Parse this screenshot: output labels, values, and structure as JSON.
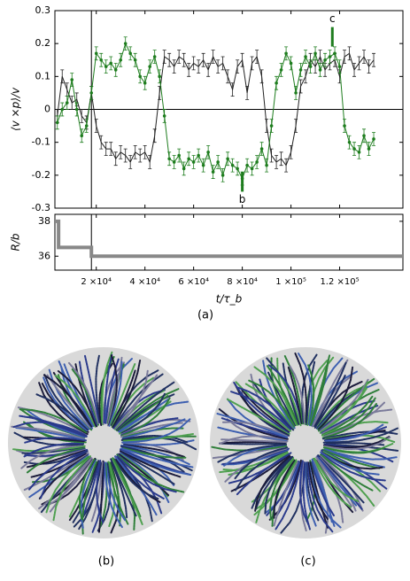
{
  "chart_data": [
    {
      "type": "line",
      "ylabel": "⟨v ×p⟩/v",
      "x": [
        4000,
        6000,
        8000,
        10000,
        12000,
        14000,
        16000,
        18000,
        20000,
        22000,
        24000,
        26000,
        28000,
        30000,
        32000,
        34000,
        36000,
        38000,
        40000,
        42000,
        44000,
        46000,
        48000,
        50000,
        52000,
        54000,
        56000,
        58000,
        60000,
        62000,
        64000,
        66000,
        68000,
        70000,
        72000,
        74000,
        76000,
        78000,
        80000,
        82000,
        84000,
        86000,
        88000,
        90000,
        92000,
        94000,
        96000,
        98000,
        100000,
        102000,
        104000,
        106000,
        108000,
        110000,
        112000,
        114000,
        116000,
        118000,
        120000,
        122000,
        124000,
        126000,
        128000,
        130000,
        132000,
        134000
      ],
      "series": [
        {
          "color": "#222222",
          "error": 0.02,
          "values": [
            -0.02,
            0.1,
            0.06,
            0.02,
            0.03,
            -0.02,
            -0.04,
            0.05,
            -0.05,
            -0.1,
            -0.12,
            -0.12,
            -0.15,
            -0.13,
            -0.14,
            -0.16,
            -0.13,
            -0.14,
            -0.13,
            -0.16,
            -0.08,
            0.05,
            0.16,
            0.15,
            0.13,
            0.16,
            0.15,
            0.12,
            0.14,
            0.13,
            0.15,
            0.12,
            0.16,
            0.13,
            0.14,
            0.1,
            0.06,
            0.13,
            0.15,
            0.05,
            0.14,
            0.16,
            0.1,
            -0.05,
            -0.14,
            -0.16,
            -0.15,
            -0.17,
            -0.13,
            -0.05,
            0.07,
            0.1,
            0.15,
            0.13,
            0.16,
            0.12,
            0.14,
            0.15,
            0.1,
            0.16,
            0.17,
            0.12,
            0.14,
            0.16,
            0.13,
            0.15
          ]
        },
        {
          "color": "#1e7d1e",
          "error": 0.02,
          "values": [
            -0.04,
            0.0,
            0.02,
            0.09,
            0.0,
            -0.08,
            -0.05,
            0.05,
            0.17,
            0.15,
            0.13,
            0.14,
            0.12,
            0.15,
            0.2,
            0.17,
            0.15,
            0.1,
            0.08,
            0.13,
            0.16,
            0.1,
            -0.02,
            -0.15,
            -0.16,
            -0.14,
            -0.18,
            -0.15,
            -0.16,
            -0.14,
            -0.17,
            -0.13,
            -0.19,
            -0.16,
            -0.2,
            -0.15,
            -0.17,
            -0.18,
            -0.21,
            -0.17,
            -0.18,
            -0.16,
            -0.12,
            -0.17,
            -0.05,
            0.08,
            0.12,
            0.17,
            0.14,
            0.05,
            0.12,
            0.16,
            0.13,
            0.17,
            0.12,
            0.15,
            0.16,
            0.17,
            0.13,
            -0.05,
            -0.1,
            -0.12,
            -0.13,
            -0.08,
            -0.12,
            -0.09
          ]
        }
      ],
      "xlim": [
        3000,
        146000
      ],
      "ylim": [
        -0.3,
        0.3
      ],
      "yticks": [
        -0.3,
        -0.2,
        -0.1,
        0,
        0.1,
        0.2,
        0.3
      ],
      "hline": 0,
      "vline": 18000,
      "annotations": [
        {
          "text": "b",
          "x": 80000,
          "y": -0.25
        },
        {
          "text": "c",
          "x": 117000,
          "y": 0.25
        }
      ]
    },
    {
      "type": "step",
      "ylabel": "R/b",
      "xlabel": "t/τ_b",
      "color": "#888888",
      "x": [
        3000,
        4500,
        18000,
        146000
      ],
      "values": [
        38,
        36.5,
        36,
        36
      ],
      "xlim": [
        3000,
        146000
      ],
      "ylim": [
        35.2,
        38.4
      ],
      "yticks": [
        36,
        38
      ],
      "vline": 18000,
      "xticks": [
        {
          "value": 20000,
          "label": "2 ×10⁴"
        },
        {
          "value": 40000,
          "label": "4 ×10⁴"
        },
        {
          "value": 60000,
          "label": "6 ×10⁴"
        },
        {
          "value": 80000,
          "label": "8 ×10⁴"
        },
        {
          "value": 100000,
          "label": "1 ×10⁵"
        },
        {
          "value": 120000,
          "label": "1.2 ×10⁵"
        }
      ]
    }
  ],
  "panel_labels": [
    "(a)",
    "(b)",
    "(c)"
  ]
}
